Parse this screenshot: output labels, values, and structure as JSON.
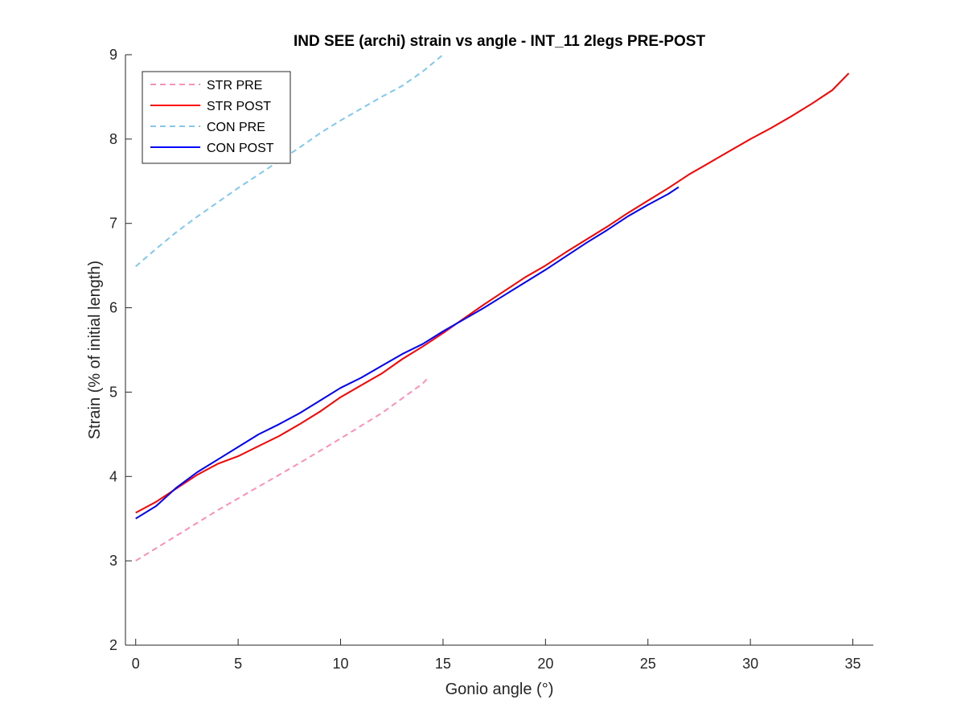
{
  "chart_data": {
    "type": "line",
    "title": "IND SEE (archi) strain vs angle - INT_11 2legs PRE-POST",
    "xlabel": "Gonio angle (°)",
    "ylabel": "Strain (% of initial length)",
    "xlim": [
      -0.5,
      36
    ],
    "ylim": [
      2,
      9
    ],
    "xticks": [
      0,
      5,
      10,
      15,
      20,
      25,
      30,
      35
    ],
    "yticks": [
      2,
      3,
      4,
      5,
      6,
      7,
      8,
      9
    ],
    "grid": false,
    "legend_position": "top-left",
    "series": [
      {
        "name": "STR PRE",
        "color": "#ff8fb8",
        "dashed": true,
        "x": [
          0,
          2,
          4,
          6,
          8,
          10,
          12,
          14,
          14.3
        ],
        "y": [
          3.0,
          3.3,
          3.6,
          3.88,
          4.16,
          4.45,
          4.75,
          5.1,
          5.18
        ]
      },
      {
        "name": "STR POST",
        "color": "#ff0000",
        "dashed": false,
        "x": [
          0,
          1,
          2,
          3,
          4,
          5,
          6,
          7,
          8,
          9,
          10,
          11,
          12,
          13,
          14,
          15,
          16,
          17,
          18,
          19,
          20,
          21,
          22,
          23,
          24,
          25,
          26,
          27,
          28,
          29,
          30,
          31,
          32,
          33,
          34,
          34.8
        ],
        "y": [
          3.57,
          3.7,
          3.86,
          4.02,
          4.15,
          4.24,
          4.36,
          4.48,
          4.62,
          4.77,
          4.94,
          5.08,
          5.22,
          5.39,
          5.54,
          5.7,
          5.87,
          6.04,
          6.2,
          6.36,
          6.5,
          6.66,
          6.81,
          6.96,
          7.12,
          7.27,
          7.42,
          7.58,
          7.72,
          7.86,
          8.0,
          8.13,
          8.27,
          8.42,
          8.58,
          8.78
        ]
      },
      {
        "name": "CON PRE",
        "color": "#80c8f0",
        "dashed": true,
        "x": [
          0,
          1,
          2,
          3,
          4,
          5,
          6,
          7,
          8,
          9,
          10,
          11,
          12,
          13,
          14,
          15
        ],
        "y": [
          6.49,
          6.7,
          6.9,
          7.08,
          7.25,
          7.42,
          7.58,
          7.74,
          7.9,
          8.07,
          8.22,
          8.36,
          8.5,
          8.63,
          8.8,
          9.0
        ]
      },
      {
        "name": "CON POST",
        "color": "#0000ff",
        "dashed": false,
        "x": [
          0,
          1,
          2,
          3,
          4,
          5,
          6,
          7,
          8,
          9,
          10,
          11,
          12,
          13,
          14,
          15,
          16,
          17,
          18,
          19,
          20,
          21,
          22,
          23,
          24,
          25,
          26,
          26.5
        ],
        "y": [
          3.5,
          3.65,
          3.87,
          4.05,
          4.2,
          4.35,
          4.5,
          4.62,
          4.75,
          4.9,
          5.05,
          5.17,
          5.31,
          5.45,
          5.57,
          5.72,
          5.86,
          6.0,
          6.15,
          6.3,
          6.45,
          6.61,
          6.77,
          6.92,
          7.08,
          7.22,
          7.35,
          7.43
        ]
      }
    ]
  }
}
